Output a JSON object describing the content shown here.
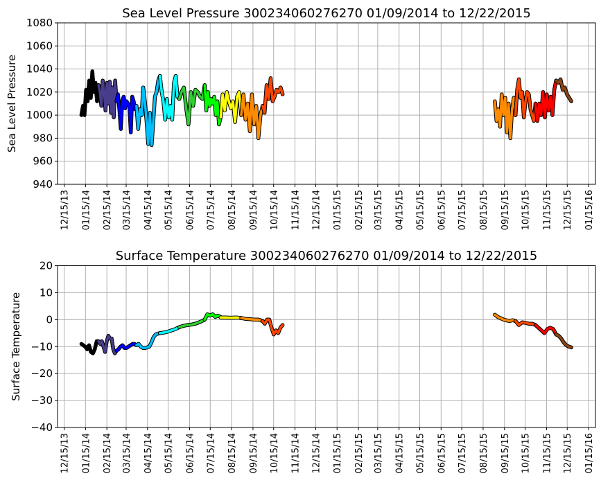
{
  "chart_data": [
    {
      "type": "line",
      "title": "Sea Level Pressure 300234060276270  01/09/2014 to 12/22/2015",
      "xlabel": "",
      "ylabel": "Sea Level Pressure",
      "x_unit": "days since 12/15/13",
      "xlim": [
        -9.6,
        771
      ],
      "ylim": [
        940,
        1080
      ],
      "yticks": [
        940,
        960,
        980,
        1000,
        1020,
        1040,
        1060,
        1080
      ],
      "ytick_labels": [
        "940",
        "960",
        "980",
        "1000",
        "1020",
        "1040",
        "1060",
        "1080"
      ],
      "xticks": [
        0,
        31,
        62,
        90,
        121,
        151,
        182,
        212,
        243,
        274,
        304,
        335,
        365,
        396,
        427,
        455,
        486,
        516,
        547,
        577,
        608,
        639,
        669,
        700,
        730,
        761
      ],
      "xtick_labels": [
        "12/15/13",
        "01/15/14",
        "02/15/14",
        "03/15/14",
        "04/15/14",
        "05/15/14",
        "06/15/14",
        "07/15/14",
        "08/15/14",
        "09/15/14",
        "10/15/14",
        "11/15/14",
        "12/15/14",
        "01/15/15",
        "02/15/15",
        "03/15/15",
        "04/15/15",
        "05/15/15",
        "06/15/15",
        "07/15/15",
        "08/15/15",
        "09/15/15",
        "10/15/15",
        "11/15/15",
        "12/15/15",
        "01/15/16"
      ],
      "grid": true,
      "segments": [
        {
          "color": "#000000",
          "start": 25,
          "end": 50,
          "values": [
            1000,
            1008,
            1000,
            1022,
            1012,
            1030,
            1015,
            1038,
            1020,
            1028,
            1012,
            1026
          ]
        },
        {
          "color": "#483d8b",
          "start": 50,
          "end": 76,
          "values": [
            1026,
            1020,
            1008,
            1030,
            1020,
            1004,
            1028,
            1010,
            1029,
            1002,
            1024,
            998,
            1030,
            1012
          ]
        },
        {
          "color": "#0000ff",
          "start": 76,
          "end": 105,
          "values": [
            1012,
            1018,
            1005,
            988,
            1012,
            1016,
            1006,
            1012,
            1010,
            1008,
            985,
            1016,
            1012,
            1005,
            1008
          ]
        },
        {
          "color": "#00bfff",
          "start": 105,
          "end": 139,
          "values": [
            1008,
            988,
            1005,
            1000,
            1024,
            1012,
            995,
            975,
            1002,
            974,
            994,
            1016,
            1020,
            1030,
            1034
          ]
        },
        {
          "color": "#00ffff",
          "start": 139,
          "end": 167,
          "values": [
            1034,
            1020,
            1012,
            996,
            1014,
            998,
            1008,
            996,
            1028,
            1034,
            1016,
            1014
          ]
        },
        {
          "color": "#32cd32",
          "start": 167,
          "end": 204,
          "values": [
            1014,
            1020,
            1024,
            1006,
            992,
            1020,
            1008,
            1022,
            1020,
            1016,
            1014,
            1026
          ]
        },
        {
          "color": "#00ff00",
          "start": 204,
          "end": 227,
          "values": [
            1026,
            1004,
            1020,
            1008,
            1014,
            1010,
            1016,
            1000,
            1012,
            992,
            998
          ]
        },
        {
          "color": "#ffff00",
          "start": 227,
          "end": 257,
          "values": [
            998,
            1018,
            1004,
            1020,
            1012,
            1006,
            1012,
            994,
            1016,
            1020,
            1000
          ]
        },
        {
          "color": "#ff8c00",
          "start": 257,
          "end": 288,
          "values": [
            1000,
            1018,
            996,
            1010,
            986,
            1018,
            992,
            1008,
            980,
            1000,
            1008
          ]
        },
        {
          "color": "#ff4500",
          "start": 288,
          "end": 317,
          "values": [
            1008,
            1002,
            1026,
            1014,
            1032,
            1012,
            1016,
            1022,
            1020,
            1024,
            1018
          ]
        },
        {
          "color": "#ff8c00",
          "start": 625,
          "end": 655,
          "values": [
            1012,
            995,
            1005,
            990,
            1018,
            1000,
            1015,
            985,
            1010,
            980,
            1005,
            1015,
            1000
          ]
        },
        {
          "color": "#ff4500",
          "start": 655,
          "end": 684,
          "values": [
            1000,
            1022,
            1031,
            1015,
            1020,
            998,
            1012,
            1020,
            1018,
            1005,
            1000,
            995,
            1010
          ]
        },
        {
          "color": "#ff0000",
          "start": 684,
          "end": 714,
          "values": [
            1010,
            995,
            1010,
            1000,
            1020,
            998,
            1018,
            1004,
            1016,
            1000,
            1022,
            1030
          ]
        },
        {
          "color": "#8b4513",
          "start": 714,
          "end": 736,
          "values": [
            1030,
            1028,
            1031,
            1022,
            1024,
            1018,
            1015,
            1012
          ]
        }
      ]
    },
    {
      "type": "line",
      "title": "Surface Temperature 300234060276270  01/09/2014 to 12/22/2015",
      "xlabel": "",
      "ylabel": "Surface Temperature",
      "x_unit": "days since 12/15/13",
      "xlim": [
        -9.6,
        771
      ],
      "ylim": [
        -40,
        20
      ],
      "yticks": [
        -40,
        -30,
        -20,
        -10,
        0,
        10,
        20
      ],
      "ytick_labels": [
        "−40",
        "−30",
        "−20",
        "−10",
        "0",
        "10",
        "20"
      ],
      "xticks": [
        0,
        31,
        62,
        90,
        121,
        151,
        182,
        212,
        243,
        274,
        304,
        335,
        365,
        396,
        427,
        455,
        486,
        516,
        547,
        577,
        608,
        639,
        669,
        700,
        730,
        761
      ],
      "xtick_labels": [
        "12/15/13",
        "01/15/14",
        "02/15/14",
        "03/15/14",
        "04/15/14",
        "05/15/14",
        "06/15/14",
        "07/15/14",
        "08/15/14",
        "09/15/14",
        "10/15/14",
        "11/15/14",
        "12/15/14",
        "01/15/15",
        "02/15/15",
        "03/15/15",
        "04/15/15",
        "05/15/15",
        "06/15/15",
        "07/15/15",
        "08/15/15",
        "09/15/15",
        "10/15/15",
        "11/15/15",
        "12/15/15",
        "01/15/16"
      ],
      "grid": true,
      "segments": [
        {
          "color": "#000000",
          "start": 25,
          "end": 50,
          "values": [
            -9,
            -9.5,
            -10,
            -11,
            -9.5,
            -12,
            -12.5,
            -11,
            -8,
            -8
          ]
        },
        {
          "color": "#483d8b",
          "start": 50,
          "end": 76,
          "values": [
            -8,
            -9,
            -8,
            -10,
            -12,
            -8,
            -6,
            -7,
            -7,
            -11,
            -12.5,
            -11.5
          ]
        },
        {
          "color": "#0000ff",
          "start": 76,
          "end": 105,
          "values": [
            -11.5,
            -11,
            -10,
            -9.5,
            -10.5,
            -10.5,
            -10,
            -9.5,
            -9,
            -9,
            -9.5
          ]
        },
        {
          "color": "#00bfff",
          "start": 105,
          "end": 139,
          "values": [
            -9.5,
            -9,
            -10,
            -10.5,
            -10.5,
            -10.3,
            -10,
            -8.5,
            -6.5,
            -5.5,
            -5.2,
            -5
          ]
        },
        {
          "color": "#00ffff",
          "start": 139,
          "end": 167,
          "values": [
            -5,
            -4.8,
            -4.5,
            -4,
            -3.5,
            -2.8
          ]
        },
        {
          "color": "#32cd32",
          "start": 167,
          "end": 204,
          "values": [
            -2.8,
            -2.3,
            -2,
            -1.8,
            -1.4,
            -0.8,
            0
          ]
        },
        {
          "color": "#00ff00",
          "start": 204,
          "end": 227,
          "values": [
            0,
            2,
            1.5,
            2,
            1,
            1.5,
            1
          ]
        },
        {
          "color": "#ffff00",
          "start": 227,
          "end": 257,
          "values": [
            0.8,
            0.8,
            0.7,
            0.8,
            0.6
          ]
        },
        {
          "color": "#ff8c00",
          "start": 257,
          "end": 288,
          "values": [
            0.6,
            0.3,
            0.2,
            0,
            0,
            -0.5
          ]
        },
        {
          "color": "#ff4500",
          "start": 288,
          "end": 317,
          "values": [
            -0.5,
            -1.5,
            0,
            0,
            -3,
            -5.5,
            -4,
            -5,
            -3,
            -2
          ]
        },
        {
          "color": "#ff8c00",
          "start": 625,
          "end": 655,
          "values": [
            1.8,
            1,
            0.5,
            0,
            -0.3,
            -0.5,
            -0.2,
            -0.5
          ]
        },
        {
          "color": "#ff4500",
          "start": 655,
          "end": 684,
          "values": [
            -0.5,
            -2,
            -1,
            -1.2,
            -1.5,
            -1.5,
            -2
          ]
        },
        {
          "color": "#ff0000",
          "start": 684,
          "end": 714,
          "values": [
            -2,
            -3,
            -4,
            -5,
            -3.5,
            -3,
            -3.5,
            -5.5
          ]
        },
        {
          "color": "#8b4513",
          "start": 714,
          "end": 736,
          "values": [
            -5.5,
            -6,
            -7,
            -8.5,
            -9.5,
            -10,
            -10.3
          ]
        }
      ]
    }
  ]
}
